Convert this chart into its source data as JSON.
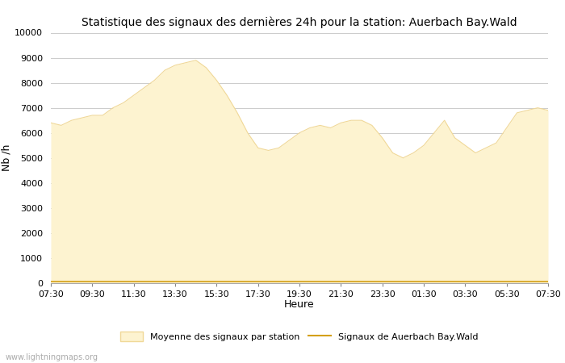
{
  "title": "Statistique des signaux des dernières 24h pour la station: Auerbach Bay.Wald",
  "xlabel": "Heure",
  "ylabel": "Nb /h",
  "watermark": "www.lightningmaps.org",
  "legend_area": "Moyenne des signaux par station",
  "legend_line": "Signaux de Auerbach Bay.Wald",
  "fill_color": "#fdf3d0",
  "fill_edge_color": "#f0d898",
  "line_color": "#d4a017",
  "background_color": "#ffffff",
  "grid_color": "#cccccc",
  "ylim": [
    0,
    10000
  ],
  "yticks": [
    0,
    1000,
    2000,
    3000,
    4000,
    5000,
    6000,
    7000,
    8000,
    9000,
    10000
  ],
  "xtick_labels": [
    "07:30",
    "09:30",
    "11:30",
    "13:30",
    "15:30",
    "17:30",
    "19:30",
    "21:30",
    "23:30",
    "01:30",
    "03:30",
    "05:30",
    "07:30"
  ],
  "x_values": [
    0,
    1,
    2,
    3,
    4,
    5,
    6,
    7,
    8,
    9,
    10,
    11,
    12,
    13,
    14,
    15,
    16,
    17,
    18,
    19,
    20,
    21,
    22,
    23,
    24,
    25,
    26,
    27,
    28,
    29,
    30,
    31,
    32,
    33,
    34,
    35,
    36,
    37,
    38,
    39,
    40,
    41,
    42,
    43,
    44,
    45,
    46,
    47,
    48
  ],
  "area_values": [
    6400,
    6300,
    6500,
    6600,
    6700,
    6700,
    7000,
    7200,
    7500,
    7800,
    8100,
    8500,
    8700,
    8800,
    8900,
    8600,
    8100,
    7500,
    6800,
    6000,
    5400,
    5300,
    5400,
    5700,
    6000,
    6200,
    6300,
    6200,
    6400,
    6500,
    6500,
    6300,
    5800,
    5200,
    5000,
    5200,
    5500,
    6000,
    6500,
    5800,
    5500,
    5200,
    5400,
    5600,
    6200,
    6800,
    6900,
    7000,
    6900
  ],
  "line_values": [
    80,
    80,
    80,
    80,
    80,
    80,
    80,
    80,
    80,
    80,
    80,
    80,
    80,
    80,
    80,
    80,
    80,
    80,
    80,
    80,
    80,
    80,
    80,
    80,
    80,
    80,
    80,
    80,
    80,
    80,
    80,
    80,
    80,
    80,
    80,
    80,
    80,
    80,
    80,
    80,
    80,
    80,
    80,
    80,
    80,
    80,
    80,
    80,
    80
  ],
  "title_fontsize": 10,
  "axis_fontsize": 9,
  "tick_fontsize": 8,
  "figsize": [
    7.0,
    4.5
  ],
  "dpi": 100
}
